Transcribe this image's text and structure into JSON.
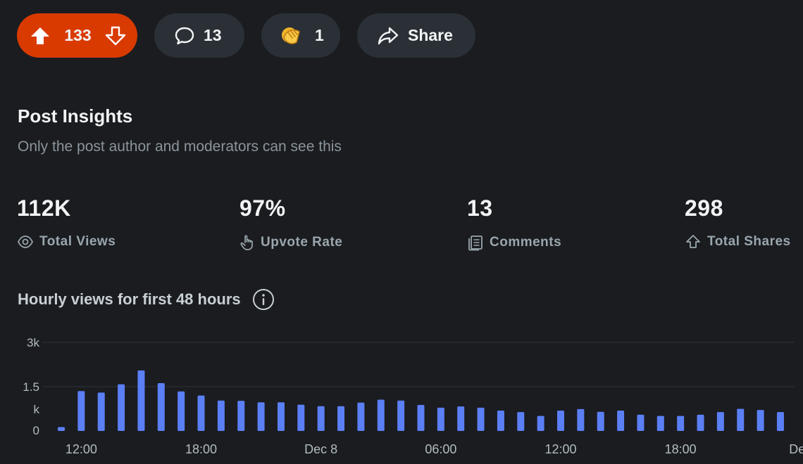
{
  "actions": {
    "score": "133",
    "comments": "13",
    "awards": "1",
    "share_label": "Share"
  },
  "insights": {
    "title": "Post Insights",
    "subtitle": "Only the post author and moderators can see this",
    "stats": [
      {
        "value": "112K",
        "label": "Total Views",
        "icon": "eye-icon"
      },
      {
        "value": "97%",
        "label": "Upvote Rate",
        "icon": "pointing-hand-icon"
      },
      {
        "value": "13",
        "label": "Comments",
        "icon": "document-stack-icon"
      },
      {
        "value": "298",
        "label": "Total Shares",
        "icon": "share-arrow-icon"
      }
    ]
  },
  "chart_title": "Hourly views for first 48 hours",
  "colors": {
    "accent": "#d93a00",
    "bar": "#5b7ff5",
    "background": "#1a1c20",
    "pill": "#2a3036"
  },
  "chart_data": {
    "type": "bar",
    "title": "Hourly views for first 48 hours",
    "y_ticks": [
      "3k",
      "1.5\nk",
      "0"
    ],
    "ylim": [
      0,
      3000
    ],
    "x_tick_labels": [
      "12:00",
      "18:00",
      "Dec 8",
      "06:00",
      "12:00",
      "18:00",
      "Dec"
    ],
    "x_tick_indices": [
      1,
      7,
      13,
      19,
      25,
      31,
      37
    ],
    "values": [
      130,
      1350,
      1300,
      1580,
      2050,
      1620,
      1340,
      1200,
      1030,
      1020,
      970,
      970,
      890,
      840,
      840,
      960,
      1060,
      1030,
      880,
      790,
      830,
      790,
      690,
      640,
      510,
      690,
      740,
      650,
      690,
      550,
      510,
      510,
      550,
      640,
      750,
      710,
      640
    ]
  }
}
